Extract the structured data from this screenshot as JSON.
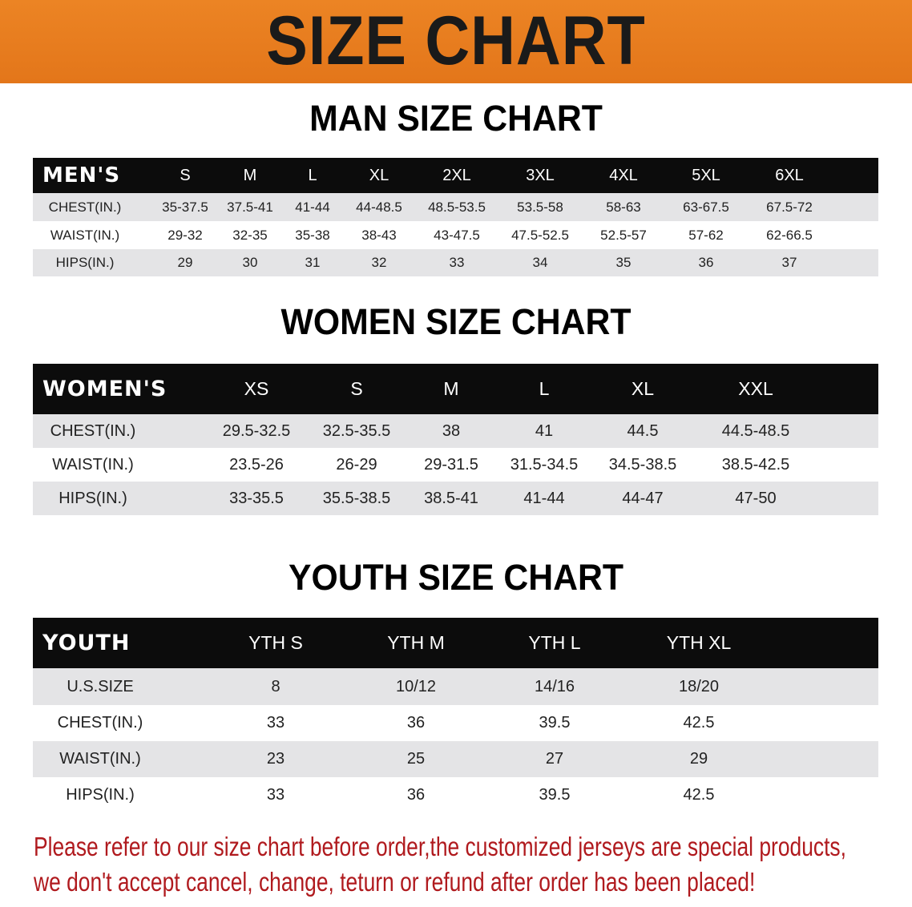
{
  "banner_title": "SIZE CHART",
  "men": {
    "title": "MAN SIZE CHART",
    "header": [
      "MEN'S",
      "S",
      "M",
      "L",
      "XL",
      "2XL",
      "3XL",
      "4XL",
      "5XL",
      "6XL"
    ],
    "rows": [
      [
        "CHEST(IN.)",
        "35-37.5",
        "37.5-41",
        "41-44",
        "44-48.5",
        "48.5-53.5",
        "53.5-58",
        "58-63",
        "63-67.5",
        "67.5-72"
      ],
      [
        "WAIST(IN.)",
        "29-32",
        "32-35",
        "35-38",
        "38-43",
        "43-47.5",
        "47.5-52.5",
        "52.5-57",
        "57-62",
        "62-66.5"
      ],
      [
        "HIPS(IN.)",
        "29",
        "30",
        "31",
        "32",
        "33",
        "34",
        "35",
        "36",
        "37"
      ]
    ]
  },
  "women": {
    "title": "WOMEN SIZE CHART",
    "header": [
      "WOMEN'S",
      "XS",
      "S",
      "M",
      "L",
      "XL",
      "XXL"
    ],
    "rows": [
      [
        "CHEST(IN.)",
        "29.5-32.5",
        "32.5-35.5",
        "38",
        "41",
        "44.5",
        "44.5-48.5"
      ],
      [
        "WAIST(IN.)",
        "23.5-26",
        "26-29",
        "29-31.5",
        "31.5-34.5",
        "34.5-38.5",
        "38.5-42.5"
      ],
      [
        "HIPS(IN.)",
        "33-35.5",
        "35.5-38.5",
        "38.5-41",
        "41-44",
        "44-47",
        "47-50"
      ]
    ]
  },
  "youth": {
    "title": "YOUTH SIZE CHART",
    "header": [
      "YOUTH",
      "YTH S",
      "YTH M",
      "YTH L",
      "YTH XL"
    ],
    "rows": [
      [
        "U.S.SIZE",
        "8",
        "10/12",
        "14/16",
        "18/20"
      ],
      [
        "CHEST(IN.)",
        "33",
        "36",
        "39.5",
        "42.5"
      ],
      [
        "WAIST(IN.)",
        "23",
        "25",
        "27",
        "29"
      ],
      [
        "HIPS(IN.)",
        "33",
        "36",
        "39.5",
        "42.5"
      ]
    ]
  },
  "notice": {
    "line1": "Please refer to our size chart before order,the customized jerseys are special products,",
    "line2": "we don't accept cancel, change, teturn or refund after order has been placed!"
  },
  "colors": {
    "banner": "#e87c1e",
    "header_row": "#0c0c0c",
    "stripe": "#e4e4e6",
    "notice": "#b01a1e"
  }
}
